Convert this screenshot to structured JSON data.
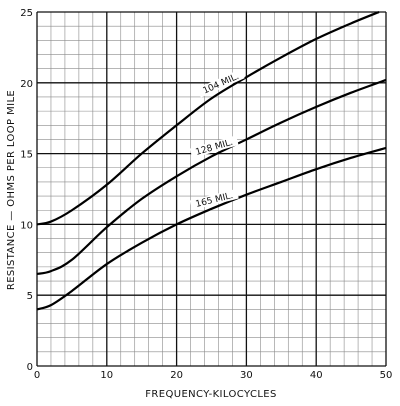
{
  "chart_data": {
    "type": "line",
    "xlabel": "FREQUENCY-KILOCYCLES",
    "ylabel": "RESISTANCE — OHMS PER LOOP MILE",
    "xlim": [
      0,
      50
    ],
    "ylim": [
      0,
      25
    ],
    "x_ticks": [
      "0",
      "10",
      "20",
      "30",
      "40",
      "50"
    ],
    "y_ticks": [
      "0",
      "5",
      "10",
      "15",
      "20",
      "25"
    ],
    "grid": true,
    "series": [
      {
        "name": "104 MIL.",
        "x": [
          0,
          2,
          5,
          10,
          15,
          20,
          25,
          30,
          35,
          40,
          45,
          49
        ],
        "y": [
          10.0,
          10.2,
          11.0,
          12.8,
          15.0,
          17.0,
          18.9,
          20.4,
          21.8,
          23.1,
          24.2,
          25.0
        ]
      },
      {
        "name": "128 MIL.",
        "x": [
          0,
          2,
          5,
          10,
          15,
          20,
          25,
          30,
          35,
          40,
          45,
          50
        ],
        "y": [
          6.5,
          6.7,
          7.5,
          9.8,
          11.8,
          13.4,
          14.8,
          16.0,
          17.2,
          18.3,
          19.3,
          20.2
        ]
      },
      {
        "name": "165 MIL.",
        "x": [
          0,
          2,
          5,
          10,
          15,
          20,
          25,
          30,
          35,
          40,
          45,
          50
        ],
        "y": [
          4.0,
          4.3,
          5.3,
          7.2,
          8.7,
          10.0,
          11.1,
          12.1,
          13.0,
          13.9,
          14.7,
          15.4
        ]
      }
    ]
  }
}
